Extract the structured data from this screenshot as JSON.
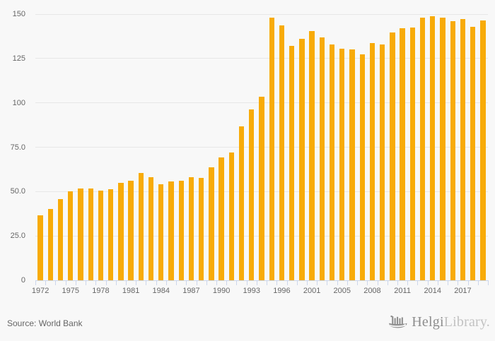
{
  "page": {
    "background": "#f8f8f8"
  },
  "chart_data": {
    "type": "bar",
    "title": "",
    "legend": "none",
    "grid": true,
    "bar_color": "#f8ab08",
    "grid_color": "#e7e7e7",
    "axis_line_color": "#ccd6eb",
    "axis_label_color": "#666666",
    "ylim": [
      0,
      150
    ],
    "y_ticks": [
      {
        "label": "150",
        "value": 150
      },
      {
        "label": "125",
        "value": 125
      },
      {
        "label": "100",
        "value": 100
      },
      {
        "label": "75.0",
        "value": 75
      },
      {
        "label": "50.0",
        "value": 50
      },
      {
        "label": "25.0",
        "value": 25
      },
      {
        "label": "0",
        "value": 0
      }
    ],
    "x_ticks": [
      {
        "label": "1972",
        "bar_index": 0
      },
      {
        "label": "1975",
        "bar_index": 3
      },
      {
        "label": "1978",
        "bar_index": 6
      },
      {
        "label": "1981",
        "bar_index": 9
      },
      {
        "label": "1984",
        "bar_index": 12
      },
      {
        "label": "1987",
        "bar_index": 15
      },
      {
        "label": "1990",
        "bar_index": 18
      },
      {
        "label": "1993",
        "bar_index": 21
      },
      {
        "label": "1996",
        "bar_index": 24
      },
      {
        "label": "2001",
        "bar_index": 27
      },
      {
        "label": "2005",
        "bar_index": 30
      },
      {
        "label": "2008",
        "bar_index": 33
      },
      {
        "label": "2011",
        "bar_index": 36
      },
      {
        "label": "2014",
        "bar_index": 39
      },
      {
        "label": "2017",
        "bar_index": 42
      }
    ],
    "values": [
      36.6,
      40.2,
      45.9,
      50.3,
      51.6,
      51.9,
      50.5,
      51.5,
      54.8,
      56.2,
      60.4,
      58.0,
      54.2,
      55.6,
      56.1,
      58.1,
      57.8,
      63.5,
      69.4,
      72.0,
      86.6,
      96.4,
      103.6,
      148.1,
      143.8,
      132.1,
      136.0,
      140.3,
      136.7,
      132.9,
      130.5,
      130.3,
      127.2,
      133.8,
      132.8,
      139.8,
      142.1,
      142.6,
      148.2,
      148.7,
      147.9,
      146.2,
      147.1,
      143.0,
      146.3
    ]
  },
  "footer": {
    "source_text": "Source: World Bank",
    "logo": {
      "icon": "viking-ship-icon",
      "brand_primary": "Helgi",
      "brand_secondary": "Library."
    }
  }
}
